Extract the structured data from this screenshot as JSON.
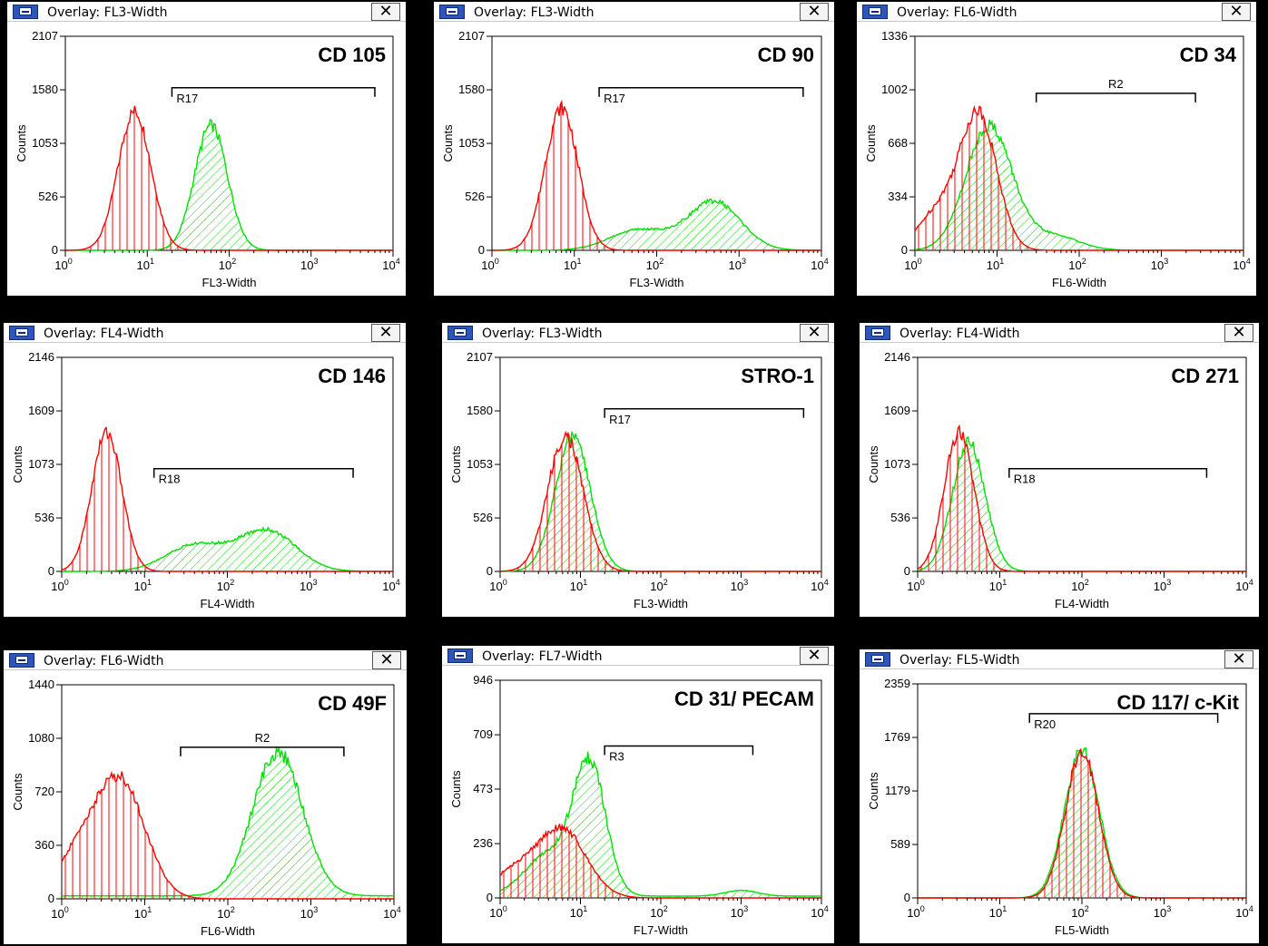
{
  "chart_data": [
    {
      "type": "histogram-overlay",
      "window_title": "Overlay: FL3-Width",
      "title": "CD 105",
      "xlabel": "FL3-Width",
      "ylabel": "Counts",
      "x_scale": "log",
      "x_ticks": [
        "10",
        "10",
        "10",
        "10",
        "10"
      ],
      "x_tick_exponents": [
        "0",
        "1",
        "2",
        "3",
        "4"
      ],
      "y_ticks": [
        "0",
        "526",
        "1053",
        "1580",
        "2107"
      ],
      "ylim": [
        0,
        2107
      ],
      "gate": {
        "label": "R17",
        "x_start": 20,
        "x_end": 6000,
        "y": 1600
      },
      "series": [
        {
          "color": "#ff0000",
          "fill": "vertical",
          "peaks": [
            {
              "center": 7,
              "height": 1370,
              "sd": 0.2
            }
          ],
          "baseline": 0
        },
        {
          "color": "#00e000",
          "fill": "diagonal",
          "peaks": [
            {
              "center": 60,
              "height": 1230,
              "sd": 0.2
            }
          ],
          "baseline": 0
        }
      ]
    },
    {
      "type": "histogram-overlay",
      "window_title": "Overlay: FL3-Width",
      "title": "CD 90",
      "xlabel": "FL3-Width",
      "ylabel": "Counts",
      "x_scale": "log",
      "x_ticks": [
        "10",
        "10",
        "10",
        "10",
        "10"
      ],
      "x_tick_exponents": [
        "0",
        "1",
        "2",
        "3",
        "4"
      ],
      "y_ticks": [
        "0",
        "526",
        "1053",
        "1580",
        "2107"
      ],
      "ylim": [
        0,
        2107
      ],
      "gate": {
        "label": "R17",
        "x_start": 20,
        "x_end": 6000,
        "y": 1600
      },
      "series": [
        {
          "color": "#ff0000",
          "fill": "vertical",
          "peaks": [
            {
              "center": 7,
              "height": 1400,
              "sd": 0.2
            }
          ],
          "baseline": 0
        },
        {
          "color": "#00e000",
          "fill": "diagonal",
          "peaks": [
            {
              "center": 500,
              "height": 480,
              "sd": 0.32
            },
            {
              "center": 60,
              "height": 200,
              "sd": 0.35
            }
          ],
          "baseline": 0
        }
      ]
    },
    {
      "type": "histogram-overlay",
      "window_title": "Overlay: FL6-Width",
      "title": "CD 34",
      "xlabel": "FL6-Width",
      "ylabel": "Counts",
      "x_scale": "log",
      "x_ticks": [
        "10",
        "10",
        "10",
        "10",
        "10"
      ],
      "x_tick_exponents": [
        "0",
        "1",
        "2",
        "3",
        "4"
      ],
      "y_ticks": [
        "0",
        "334",
        "668",
        "1002",
        "1336"
      ],
      "ylim": [
        0,
        1336
      ],
      "gate": {
        "label": "R2",
        "x_start": 30,
        "x_end": 2600,
        "y": 980
      },
      "series": [
        {
          "color": "#ff0000",
          "fill": "vertical",
          "peaks": [
            {
              "center": 6,
              "height": 830,
              "sd": 0.22
            },
            {
              "center": 2,
              "height": 250,
              "sd": 0.25
            }
          ],
          "baseline": 0
        },
        {
          "color": "#00e000",
          "fill": "diagonal",
          "peaks": [
            {
              "center": 8,
              "height": 780,
              "sd": 0.28
            },
            {
              "center": 50,
              "height": 90,
              "sd": 0.3
            }
          ],
          "baseline": 0
        }
      ]
    },
    {
      "type": "histogram-overlay",
      "window_title": "Overlay: FL4-Width",
      "title": "CD 146",
      "xlabel": "FL4-Width",
      "ylabel": "Counts",
      "x_scale": "log",
      "x_ticks": [
        "10",
        "10",
        "10",
        "10",
        "10"
      ],
      "x_tick_exponents": [
        "0",
        "1",
        "2",
        "3",
        "4"
      ],
      "y_ticks": [
        "0",
        "536",
        "1073",
        "1609",
        "2146"
      ],
      "ylim": [
        0,
        2146
      ],
      "gate": {
        "label": "R18",
        "x_start": 13,
        "x_end": 3300,
        "y": 1030
      },
      "series": [
        {
          "color": "#ff0000",
          "fill": "vertical",
          "peaks": [
            {
              "center": 3.5,
              "height": 1400,
              "sd": 0.18
            }
          ],
          "baseline": 0
        },
        {
          "color": "#00e000",
          "fill": "diagonal",
          "peaks": [
            {
              "center": 300,
              "height": 410,
              "sd": 0.35
            },
            {
              "center": 40,
              "height": 260,
              "sd": 0.35
            }
          ],
          "baseline": 0
        }
      ]
    },
    {
      "type": "histogram-overlay",
      "window_title": "Overlay: FL3-Width",
      "title": "STRO-1",
      "xlabel": "FL3-Width",
      "ylabel": "Counts",
      "x_scale": "log",
      "x_ticks": [
        "10",
        "10",
        "10",
        "10",
        "10"
      ],
      "x_tick_exponents": [
        "0",
        "1",
        "2",
        "3",
        "4"
      ],
      "y_ticks": [
        "0",
        "526",
        "1053",
        "1580",
        "2107"
      ],
      "ylim": [
        0,
        2107
      ],
      "gate": {
        "label": "R17",
        "x_start": 20,
        "x_end": 6000,
        "y": 1600
      },
      "series": [
        {
          "color": "#ff0000",
          "fill": "vertical",
          "peaks": [
            {
              "center": 6.5,
              "height": 1330,
              "sd": 0.22
            }
          ],
          "baseline": 0
        },
        {
          "color": "#00e000",
          "fill": "diagonal",
          "peaks": [
            {
              "center": 8,
              "height": 1330,
              "sd": 0.22
            }
          ],
          "baseline": 0
        }
      ]
    },
    {
      "type": "histogram-overlay",
      "window_title": "Overlay: FL4-Width",
      "title": "CD 271",
      "xlabel": "FL4-Width",
      "ylabel": "Counts",
      "x_scale": "log",
      "x_ticks": [
        "10",
        "10",
        "10",
        "10",
        "10"
      ],
      "x_tick_exponents": [
        "0",
        "1",
        "2",
        "3",
        "4"
      ],
      "y_ticks": [
        "0",
        "536",
        "1073",
        "1609",
        "2146"
      ],
      "ylim": [
        0,
        2146
      ],
      "gate": {
        "label": "R18",
        "x_start": 13,
        "x_end": 3300,
        "y": 1030
      },
      "series": [
        {
          "color": "#ff0000",
          "fill": "vertical",
          "peaks": [
            {
              "center": 3.2,
              "height": 1400,
              "sd": 0.18
            }
          ],
          "baseline": 0
        },
        {
          "color": "#00e000",
          "fill": "diagonal",
          "peaks": [
            {
              "center": 4.2,
              "height": 1290,
              "sd": 0.2
            }
          ],
          "baseline": 0
        }
      ]
    },
    {
      "type": "histogram-overlay",
      "window_title": "Overlay: FL6-Width",
      "title": "CD 49F",
      "xlabel": "FL6-Width",
      "ylabel": "Counts",
      "x_scale": "log",
      "x_ticks": [
        "10",
        "10",
        "10",
        "10",
        "10"
      ],
      "x_tick_exponents": [
        "0",
        "1",
        "2",
        "3",
        "4"
      ],
      "y_ticks": [
        "0",
        "360",
        "720",
        "1080",
        "1440"
      ],
      "ylim": [
        0,
        1440
      ],
      "gate": {
        "label": "R2",
        "x_start": 27,
        "x_end": 2500,
        "y": 1020
      },
      "series": [
        {
          "color": "#ff0000",
          "fill": "vertical",
          "peaks": [
            {
              "center": 5,
              "height": 800,
              "sd": 0.3
            },
            {
              "center": 1.5,
              "height": 250,
              "sd": 0.25
            }
          ],
          "baseline": 0
        },
        {
          "color": "#00e000",
          "fill": "diagonal",
          "peaks": [
            {
              "center": 400,
              "height": 970,
              "sd": 0.3
            }
          ],
          "baseline": 20
        }
      ]
    },
    {
      "type": "histogram-overlay",
      "window_title": "Overlay: FL7-Width",
      "title": "CD 31/ PECAM",
      "xlabel": "FL7-Width",
      "ylabel": "Counts",
      "x_scale": "log",
      "x_ticks": [
        "10",
        "10",
        "10",
        "10",
        "10"
      ],
      "x_tick_exponents": [
        "0",
        "1",
        "2",
        "3",
        "4"
      ],
      "y_ticks": [
        "0",
        "236",
        "473",
        "709",
        "946"
      ],
      "ylim": [
        0,
        946
      ],
      "gate": {
        "label": "R3",
        "x_start": 20,
        "x_end": 1400,
        "y": 660
      },
      "series": [
        {
          "color": "#ff0000",
          "fill": "vertical",
          "peaks": [
            {
              "center": 6,
              "height": 290,
              "sd": 0.3
            },
            {
              "center": 1.5,
              "height": 110,
              "sd": 0.3
            }
          ],
          "baseline": 0
        },
        {
          "color": "#00e000",
          "fill": "diagonal",
          "peaks": [
            {
              "center": 13,
              "height": 560,
              "sd": 0.2
            },
            {
              "center": 4,
              "height": 180,
              "sd": 0.3
            },
            {
              "center": 1000,
              "height": 25,
              "sd": 0.2
            }
          ],
          "baseline": 8
        }
      ]
    },
    {
      "type": "histogram-overlay",
      "window_title": "Overlay: FL5-Width",
      "title": "CD 117/ c-Kit",
      "xlabel": "FL5-Width",
      "ylabel": "Counts",
      "x_scale": "log",
      "x_ticks": [
        "10",
        "10",
        "10",
        "10",
        "10"
      ],
      "x_tick_exponents": [
        "0",
        "1",
        "2",
        "3",
        "4"
      ],
      "y_ticks": [
        "0",
        "589",
        "1179",
        "1769",
        "2359"
      ],
      "ylim": [
        0,
        2359
      ],
      "gate": {
        "label": "R20",
        "x_start": 23,
        "x_end": 4500,
        "y": 2030
      },
      "series": [
        {
          "color": "#ff0000",
          "fill": "vertical",
          "peaks": [
            {
              "center": 100,
              "height": 1620,
              "sd": 0.2
            }
          ],
          "baseline": 0
        },
        {
          "color": "#00e000",
          "fill": "diagonal",
          "peaks": [
            {
              "center": 100,
              "height": 1620,
              "sd": 0.21
            }
          ],
          "baseline": 0
        }
      ]
    }
  ],
  "close_glyph": "✕"
}
